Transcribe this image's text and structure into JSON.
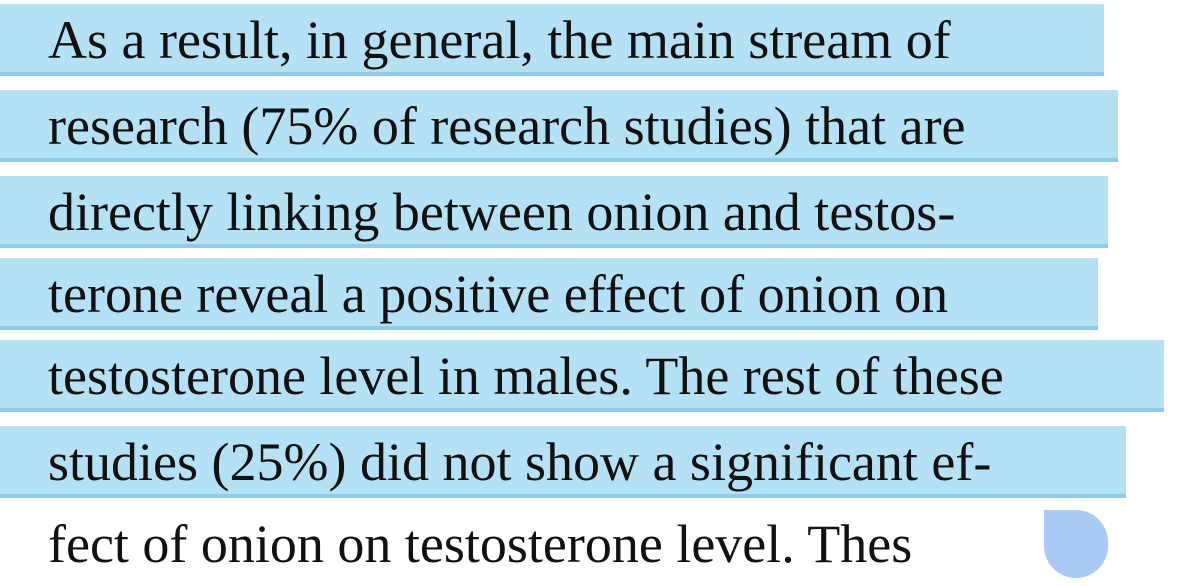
{
  "document": {
    "lines": [
      {
        "text": "As a result, in general, the main stream of",
        "selected": true
      },
      {
        "text": "research (75% of research studies) that are",
        "selected": true
      },
      {
        "text": "directly linking between onion and testos-",
        "selected": true
      },
      {
        "text": "terone reveal a positive effect of onion on",
        "selected": true
      },
      {
        "text": "testosterone level in males. The rest of these",
        "selected": true
      },
      {
        "text": "studies (25%) did not show a significant ef-",
        "selected": true
      },
      {
        "text": "fect of onion on testosterone level. Thes",
        "selected": false
      }
    ]
  },
  "colors": {
    "selection": "#b5e1f5",
    "selection_underline": "#8fcbea",
    "handle": "#a9c9f7",
    "text": "#111111"
  }
}
